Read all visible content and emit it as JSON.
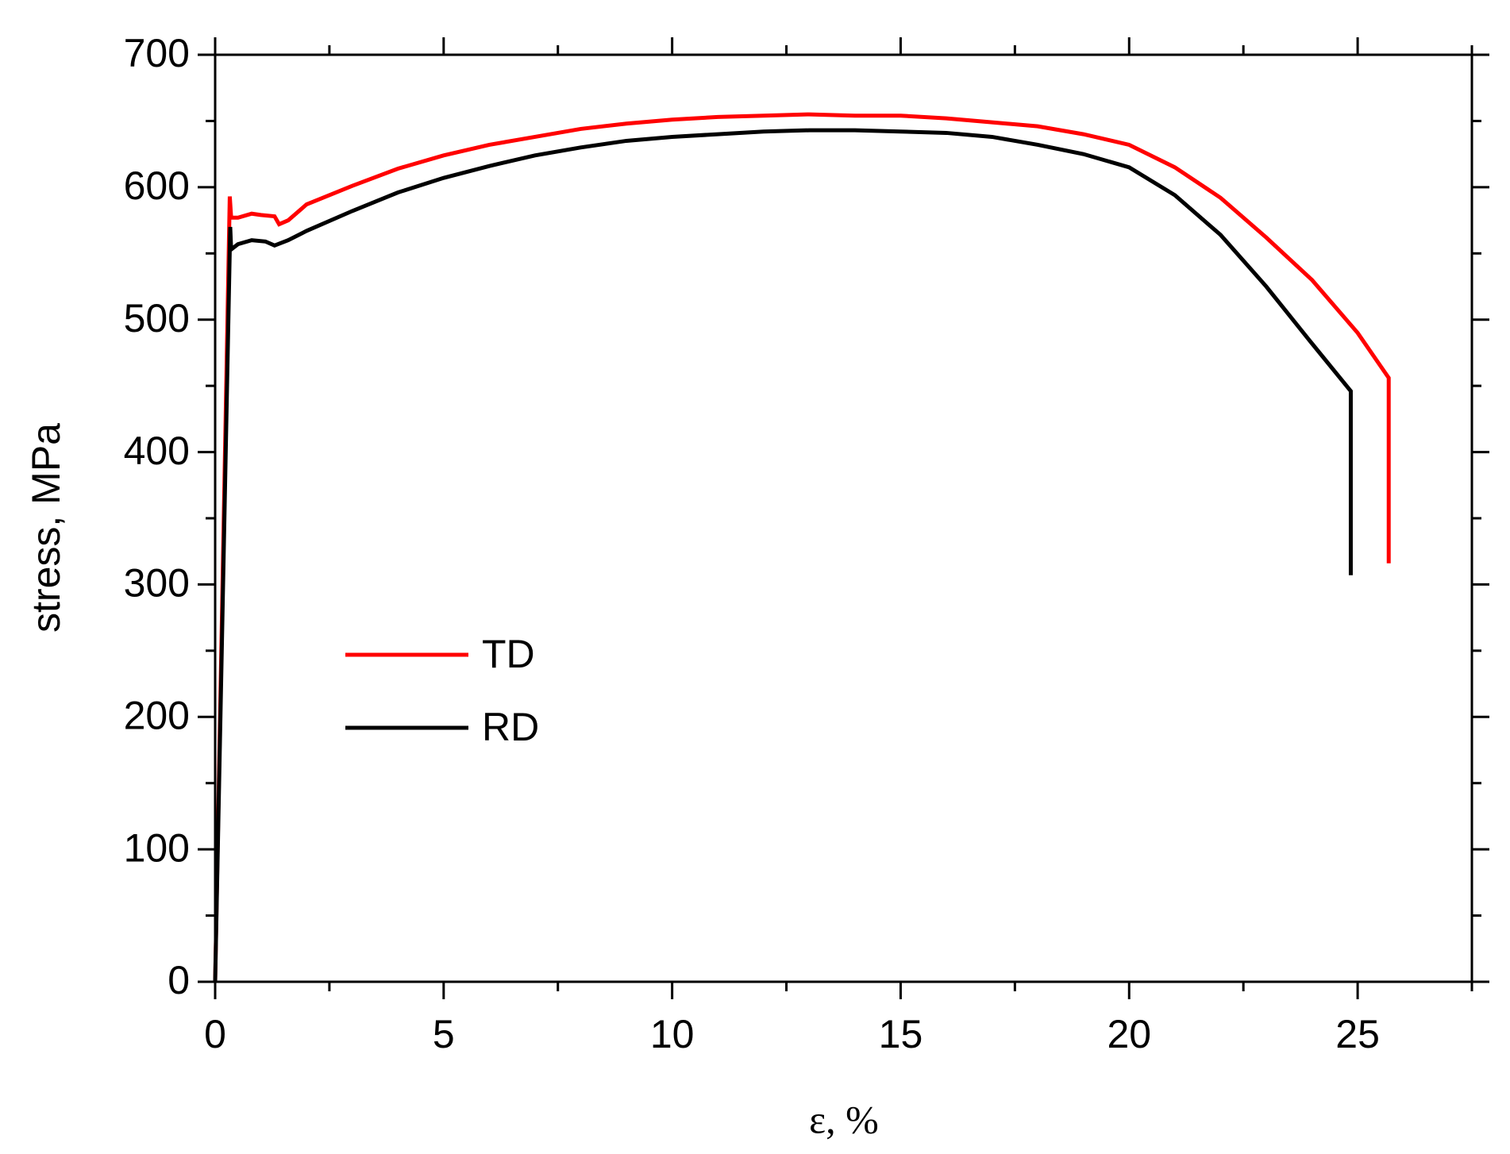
{
  "chart_data": {
    "type": "line",
    "xlabel": "ε, %",
    "ylabel": "stress, MPa",
    "xlim": [
      0,
      27.5
    ],
    "ylim": [
      0,
      700
    ],
    "xticks": [
      0,
      5,
      10,
      15,
      20,
      25
    ],
    "yticks": [
      0,
      100,
      200,
      300,
      400,
      500,
      600,
      700
    ],
    "xminorticks": [
      2.5,
      7.5,
      12.5,
      17.5,
      22.5,
      27.5
    ],
    "yminorticks": [
      50,
      150,
      250,
      350,
      450,
      550,
      650
    ],
    "legend": "center-left",
    "series": [
      {
        "name": "TD",
        "color": "#ff0000",
        "x": [
          0,
          0.32,
          0.35,
          0.5,
          0.8,
          1.0,
          1.3,
          1.4,
          1.6,
          2,
          3,
          4,
          5,
          6,
          7,
          8,
          9,
          10,
          11,
          12,
          13,
          14,
          15,
          16,
          17,
          18,
          19,
          20,
          21,
          22,
          23,
          24,
          25,
          25.68,
          25.68
        ],
        "values": [
          0,
          593,
          577,
          577,
          580,
          579,
          578,
          572,
          575,
          587,
          601,
          614,
          624,
          632,
          638,
          644,
          648,
          651,
          653,
          654,
          655,
          654,
          654,
          652,
          649,
          646,
          640,
          632,
          615,
          592,
          562,
          530,
          490,
          456,
          316
        ]
      },
      {
        "name": "RD",
        "color": "#000000",
        "x": [
          0,
          0.33,
          0.35,
          0.5,
          0.8,
          1.1,
          1.3,
          1.6,
          2,
          3,
          4,
          5,
          6,
          7,
          8,
          9,
          10,
          11,
          12,
          13,
          14,
          15,
          16,
          17,
          18,
          19,
          20,
          21,
          22,
          23,
          24,
          24.85,
          24.85
        ],
        "values": [
          0,
          570,
          553,
          557,
          560,
          559,
          556,
          560,
          567,
          582,
          596,
          607,
          616,
          624,
          630,
          635,
          638,
          640,
          642,
          643,
          643,
          642,
          641,
          638,
          632,
          625,
          615,
          594,
          564,
          525,
          482,
          446,
          307
        ]
      }
    ]
  }
}
